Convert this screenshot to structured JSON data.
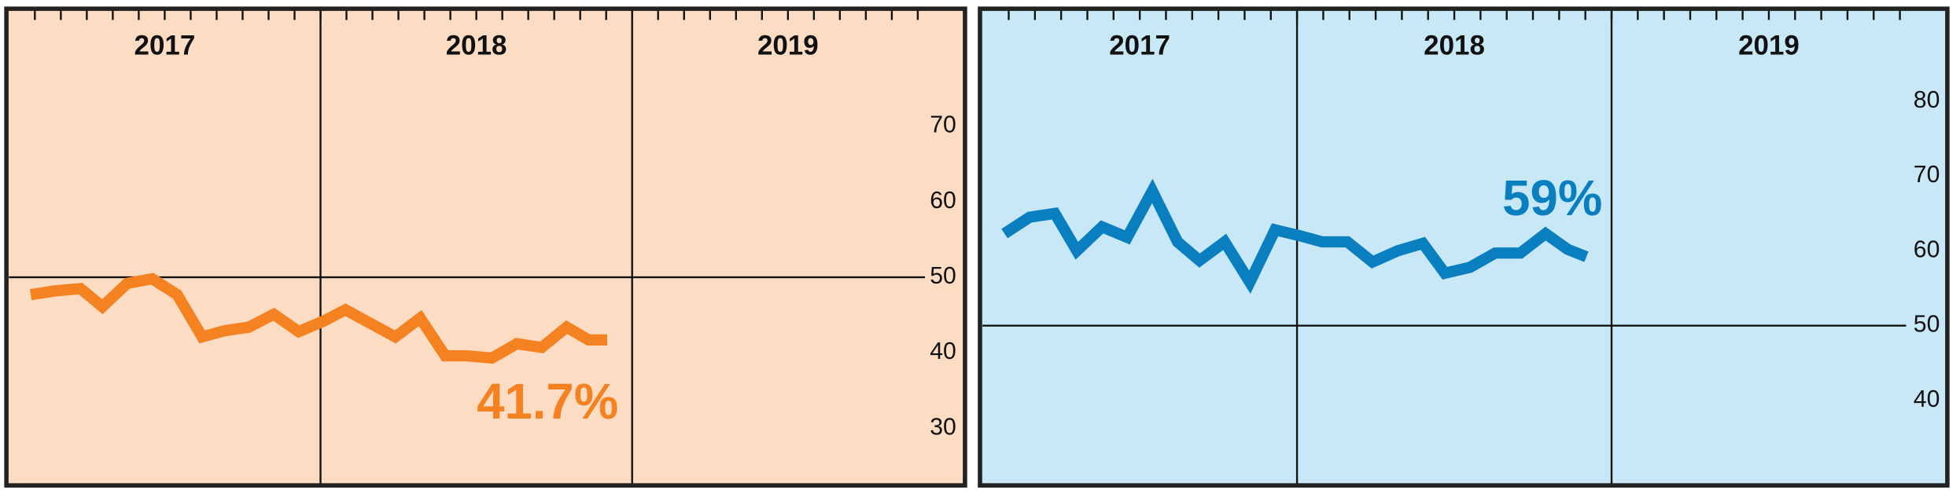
{
  "chart_data": [
    {
      "type": "line",
      "x": [
        2017.07,
        2017.15,
        2017.23,
        2017.3,
        2017.38,
        2017.46,
        2017.54,
        2017.62,
        2017.69,
        2017.77,
        2017.85,
        2017.93,
        2018.01,
        2018.08,
        2018.16,
        2018.24,
        2018.32,
        2018.4,
        2018.47,
        2018.55,
        2018.63,
        2018.71,
        2018.79,
        2018.86,
        2018.92
      ],
      "values": [
        47.7,
        48.2,
        48.5,
        46.1,
        49.2,
        49.8,
        47.7,
        42.1,
        42.9,
        43.4,
        45.1,
        42.8,
        44.2,
        45.7,
        43.9,
        42.1,
        44.6,
        39.6,
        39.6,
        39.3,
        41.2,
        40.7,
        43.4,
        41.7,
        41.7
      ],
      "color": "#f58220",
      "background": "#fcdcc3",
      "xlim": [
        2017,
        2020
      ],
      "xticks": [
        2017,
        2018,
        2019
      ],
      "ylim": [
        22.6,
        85.4
      ],
      "yticks": [
        30,
        40,
        50,
        60,
        70
      ],
      "hline": 50,
      "annotation": "41.7%"
    },
    {
      "type": "line",
      "x": [
        2017.07,
        2017.15,
        2017.23,
        2017.3,
        2017.38,
        2017.46,
        2017.54,
        2017.62,
        2017.69,
        2017.77,
        2017.85,
        2017.93,
        2018.01,
        2018.08,
        2018.16,
        2018.24,
        2018.32,
        2018.4,
        2018.47,
        2018.55,
        2018.63,
        2018.71,
        2018.79,
        2018.86,
        2018.92
      ],
      "values": [
        62.3,
        64.5,
        65.0,
        60.0,
        63.2,
        61.8,
        68.0,
        61.2,
        58.7,
        61.2,
        55.8,
        62.8,
        62.0,
        61.2,
        61.2,
        58.5,
        60.0,
        61.0,
        57.0,
        57.8,
        59.7,
        59.7,
        62.3,
        60.2,
        59.2
      ],
      "color": "#0a7fc0",
      "background": "#c8e8f8",
      "xlim": [
        2017,
        2020
      ],
      "xticks": [
        2017,
        2018,
        2019
      ],
      "ylim": [
        28.8,
        92.2
      ],
      "yticks": [
        40,
        50,
        60,
        70,
        80
      ],
      "hline": 50,
      "annotation": "59%"
    }
  ]
}
